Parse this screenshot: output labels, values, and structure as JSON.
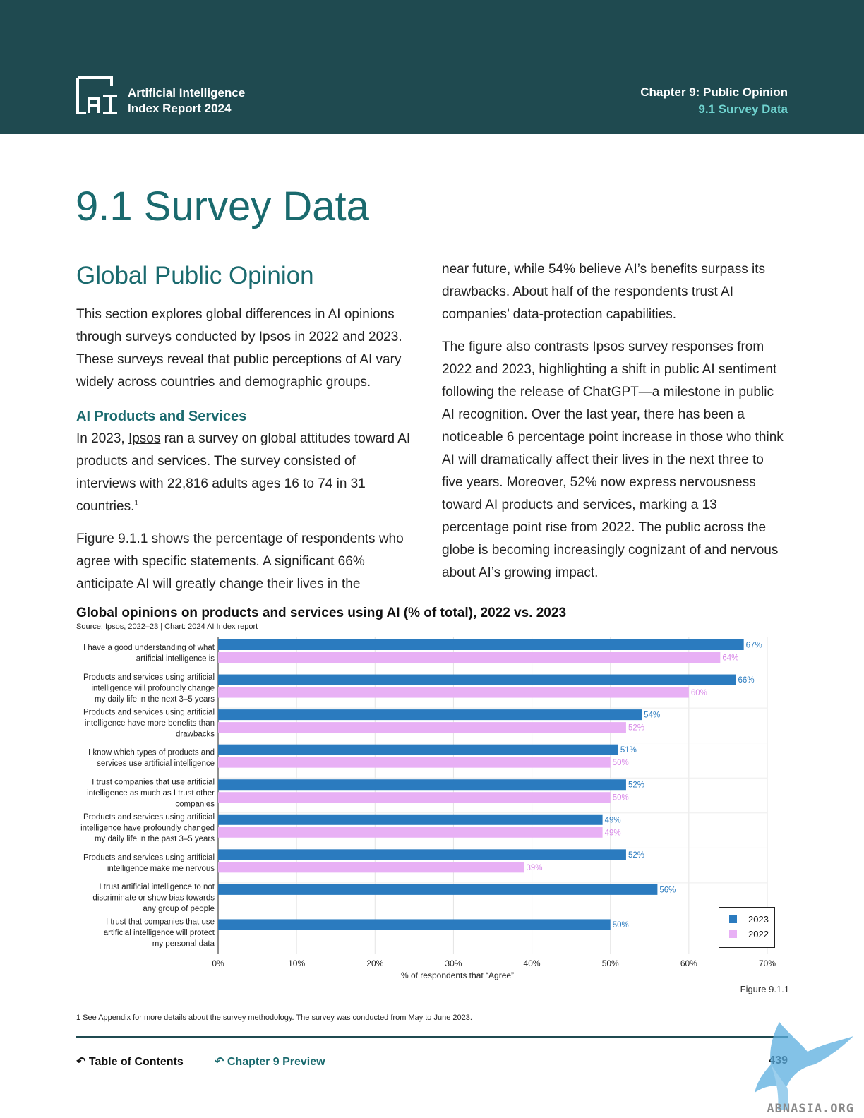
{
  "header": {
    "logo_line1": "Artificial Intelligence",
    "logo_line2": "Index Report 2024",
    "chapter": "Chapter 9: Public Opinion",
    "section": "9.1 Survey Data"
  },
  "page_title": "9.1 Survey Data",
  "left": {
    "heading": "Global Public Opinion",
    "intro": "This section explores global differences in AI opinions through surveys conducted by Ipsos in 2022 and 2023. These surveys reveal that public perceptions of AI vary widely across countries and demographic groups.",
    "subheading": "AI Products and Services",
    "p1_before": "In 2023, ",
    "p1_link": "Ipsos",
    "p1_after": " ran a survey on global attitudes toward AI products and services. The survey consisted of interviews with 22,816 adults ages 16 to 74 in 31 countries.",
    "p1_sup": "1",
    "p2": "Figure 9.1.1 shows the percentage of respondents who agree with specific statements. A significant 66% anticipate AI will greatly change their lives in the"
  },
  "right": {
    "p1": "near future, while 54% believe AI’s benefits surpass its drawbacks. About half of the respondents trust AI companies’ data-protection capabilities.",
    "p2": "The figure also contrasts Ipsos survey responses from 2022 and 2023, highlighting a shift in public AI sentiment following the release of ChatGPT—a milestone in public AI recognition. Over the last year, there has been a noticeable 6 percentage point increase in those who think AI will dramatically affect their lives in the next three to five years. Moreover, 52% now express nervousness toward AI products and services, marking a 13 percentage point rise from 2022. The public across the globe is becoming increasingly cognizant of and nervous about AI’s growing impact."
  },
  "chart_data": {
    "type": "bar",
    "orientation": "horizontal",
    "title": "Global opinions on products and services using AI (% of total), 2022 vs. 2023",
    "source": "Source: Ipsos, 2022–23 | Chart: 2024 AI Index report",
    "xlabel": "% of respondents that “Agree”",
    "xlim": [
      0,
      70
    ],
    "xticks": [
      "0%",
      "10%",
      "20%",
      "30%",
      "40%",
      "50%",
      "60%",
      "70%"
    ],
    "categories": [
      [
        "I have a good understanding of what",
        "artificial intelligence is"
      ],
      [
        "Products and services using artificial",
        "intelligence will profoundly change",
        "my daily life in the next 3–5 years"
      ],
      [
        "Products and services using artificial",
        "intelligence have more benefits than",
        "drawbacks"
      ],
      [
        "I know which types of products and",
        "services use artificial intelligence"
      ],
      [
        "I trust companies that use artificial",
        "intelligence as much as I trust other",
        "companies"
      ],
      [
        "Products and services using artificial",
        "intelligence have profoundly changed",
        "my daily life in the past 3–5 years"
      ],
      [
        "Products and services using artificial",
        "intelligence make me nervous"
      ],
      [
        "I trust artificial intelligence to not",
        "discriminate or show bias towards",
        "any group of people"
      ],
      [
        "I trust that companies that use",
        "artificial intelligence will protect",
        "my personal data"
      ]
    ],
    "series": [
      {
        "name": "2023",
        "color": "#2b7bbf",
        "values": [
          67,
          66,
          54,
          51,
          52,
          49,
          52,
          56,
          50
        ]
      },
      {
        "name": "2022",
        "color": "#e8b0f5",
        "values": [
          64,
          60,
          52,
          50,
          50,
          49,
          39,
          null,
          null
        ]
      }
    ],
    "legend_position": "bottom-right",
    "grid": "vertical"
  },
  "figure_label": "Figure 9.1.1",
  "footnote": "1 See Appendix for more details about the survey methodology. The survey was conducted from May to June 2023.",
  "footer": {
    "toc": "Table of Contents",
    "chapter_preview": "Chapter 9 Preview",
    "page_number": "439"
  },
  "watermark": "ABNASIA.ORG"
}
